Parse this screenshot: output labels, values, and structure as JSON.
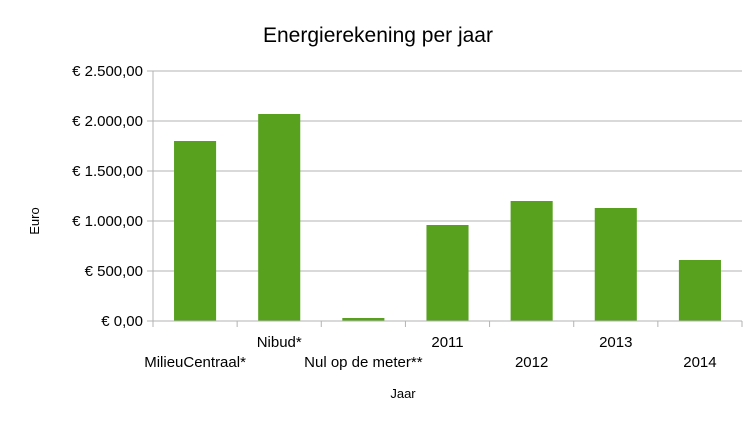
{
  "chart_data": {
    "type": "bar",
    "title": "Energierekening per jaar",
    "xlabel": "Jaar",
    "ylabel": "Euro",
    "categories": [
      "MilieuCentraal*",
      "Nibud*",
      "Nul op de meter**",
      "2011",
      "2012",
      "2013",
      "2014"
    ],
    "values": [
      1800,
      2070,
      30,
      960,
      1200,
      1130,
      610
    ],
    "ylim": [
      0,
      2500
    ],
    "yticks": [
      0,
      500,
      1000,
      1500,
      2000,
      2500
    ],
    "ytick_labels": [
      "€ 0,00",
      "€ 500,00",
      "€ 1.000,00",
      "€ 1.500,00",
      "€ 2.000,00",
      "€ 2.500,00"
    ],
    "bar_color": "#57a11f",
    "grid_color": "#b3b3b3",
    "grid": true,
    "legend": "none"
  }
}
